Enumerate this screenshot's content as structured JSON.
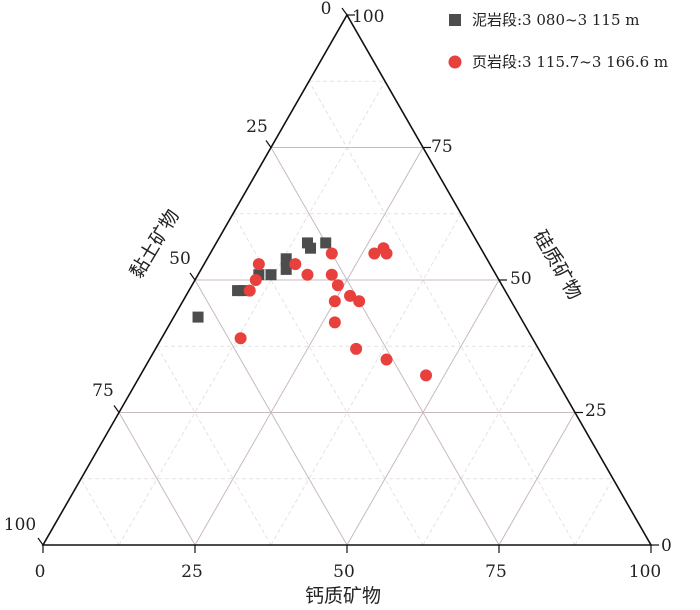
{
  "chart_data": {
    "type": "scatter",
    "plot_kind": "ternary",
    "axes": {
      "bottom": {
        "label": "钙质矿物",
        "ticks": [
          "0",
          "25",
          "50",
          "75",
          "100"
        ]
      },
      "right": {
        "label": "硅质矿物",
        "ticks": [
          "0",
          "25",
          "50",
          "75",
          "100"
        ]
      },
      "left": {
        "label": "黏土矿物",
        "ticks": [
          "0",
          "25",
          "50",
          "75",
          "100"
        ]
      }
    },
    "grid": true,
    "legend": "top-right",
    "series": [
      {
        "name": "泥岩段:3 080~3 115 m",
        "marker": "square",
        "color": "#4d4d4d",
        "points": [
          {
            "calcareous": 4,
            "siliceous": 43,
            "clay": 53
          },
          {
            "calcareous": 9,
            "siliceous": 48,
            "clay": 43
          },
          {
            "calcareous": 10,
            "siliceous": 51,
            "clay": 39
          },
          {
            "calcareous": 12,
            "siliceous": 51,
            "clay": 37
          },
          {
            "calcareous": 13,
            "siliceous": 54,
            "clay": 33
          },
          {
            "calcareous": 14,
            "siliceous": 52,
            "clay": 34
          },
          {
            "calcareous": 15,
            "siliceous": 57,
            "clay": 28
          },
          {
            "calcareous": 16,
            "siliceous": 56,
            "clay": 28
          },
          {
            "calcareous": 18,
            "siliceous": 57,
            "clay": 25
          },
          {
            "calcareous": 8,
            "siliceous": 48,
            "clay": 44
          }
        ]
      },
      {
        "name": "页岩段:3 115.7~3 166.6 m",
        "marker": "circle",
        "color": "#e8403c",
        "points": [
          {
            "calcareous": 9,
            "siliceous": 53,
            "clay": 38
          },
          {
            "calcareous": 10,
            "siliceous": 48,
            "clay": 42
          },
          {
            "calcareous": 10,
            "siliceous": 50,
            "clay": 40
          },
          {
            "calcareous": 13,
            "siliceous": 39,
            "clay": 48
          },
          {
            "calcareous": 15,
            "siliceous": 53,
            "clay": 32
          },
          {
            "calcareous": 18,
            "siliceous": 51,
            "clay": 31
          },
          {
            "calcareous": 20,
            "siliceous": 55,
            "clay": 25
          },
          {
            "calcareous": 22,
            "siliceous": 51,
            "clay": 27
          },
          {
            "calcareous": 24,
            "siliceous": 49,
            "clay": 27
          },
          {
            "calcareous": 25,
            "siliceous": 46,
            "clay": 29
          },
          {
            "calcareous": 27,
            "siliceous": 47,
            "clay": 26
          },
          {
            "calcareous": 27,
            "siliceous": 55,
            "clay": 18
          },
          {
            "calcareous": 28,
            "siliceous": 56,
            "clay": 16
          },
          {
            "calcareous": 29,
            "siliceous": 55,
            "clay": 16
          },
          {
            "calcareous": 27,
            "siliceous": 42,
            "clay": 31
          },
          {
            "calcareous": 29,
            "siliceous": 46,
            "clay": 25
          },
          {
            "calcareous": 33,
            "siliceous": 37,
            "clay": 30
          },
          {
            "calcareous": 39,
            "siliceous": 35,
            "clay": 26
          },
          {
            "calcareous": 47,
            "siliceous": 32,
            "clay": 21
          }
        ]
      }
    ]
  }
}
